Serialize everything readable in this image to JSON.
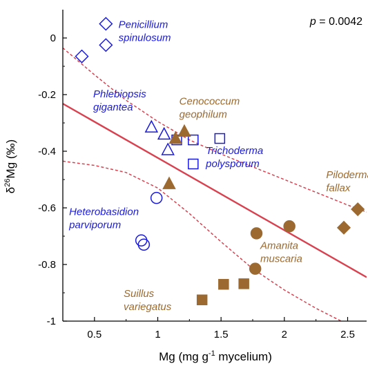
{
  "chart_data": {
    "type": "scatter",
    "xlabel": "Mg (mg g",
    "xlabel_sup": "-1",
    "xlabel_tail": " mycelium)",
    "ylabel_pre": "δ",
    "ylabel_sup": "26",
    "ylabel_tail": "Mg (‰)",
    "xlim": [
      0.25,
      2.65
    ],
    "ylim": [
      -1.0,
      0.1
    ],
    "x_ticks": [
      0.5,
      1.0,
      1.5,
      2.0,
      2.5
    ],
    "x_tick_labels": [
      "0.5",
      "1",
      "1.5",
      "2",
      "2.5"
    ],
    "y_ticks": [
      0,
      -0.2,
      -0.4,
      -0.6,
      -0.8,
      -1.0
    ],
    "y_tick_labels": [
      "0",
      "-0.2",
      "-0.4",
      "-0.6",
      "-0.8",
      "-1"
    ],
    "p_label": "p",
    "p_value": " = 0.0042",
    "colors": {
      "saprotroph": "#1a1adc",
      "mycorrhizal": "#9c6a30",
      "fit": "#d9414f"
    },
    "regression": {
      "x": [
        0.25,
        2.65
      ],
      "y": [
        -0.232,
        -0.845
      ]
    },
    "confidence_upper": {
      "x": [
        0.25,
        0.5,
        0.75,
        1.0,
        1.25,
        1.5,
        1.75,
        2.0,
        2.25,
        2.5,
        2.65
      ],
      "y": [
        -0.035,
        -0.13,
        -0.22,
        -0.295,
        -0.36,
        -0.41,
        -0.455,
        -0.5,
        -0.545,
        -0.59,
        -0.615
      ]
    },
    "confidence_lower": {
      "x": [
        0.25,
        0.5,
        0.75,
        1.0,
        1.25,
        1.5,
        1.75,
        2.0,
        2.25,
        2.45
      ],
      "y": [
        -0.435,
        -0.45,
        -0.475,
        -0.53,
        -0.62,
        -0.72,
        -0.815,
        -0.89,
        -0.955,
        -1.0
      ]
    },
    "series": [
      {
        "name": "Penicillium spinulosum",
        "marker": "diamond-open",
        "group": "saprotroph",
        "x": [
          0.4,
          0.59,
          0.59
        ],
        "y": [
          -0.065,
          0.05,
          -0.025
        ]
      },
      {
        "name": "Phlebiopsis gigantea",
        "marker": "triangle-open",
        "group": "saprotroph",
        "x": [
          0.95,
          1.05,
          1.08
        ],
        "y": [
          -0.315,
          -0.34,
          -0.395
        ]
      },
      {
        "name": "Trichoderma polysporum",
        "marker": "square-open",
        "group": "saprotroph",
        "x": [
          1.15,
          1.28,
          1.49,
          1.28
        ],
        "y": [
          -0.36,
          -0.36,
          -0.355,
          -0.445
        ]
      },
      {
        "name": "Heterobasidion parviporum",
        "marker": "circle-open",
        "group": "saprotroph",
        "x": [
          0.99,
          0.87,
          0.89
        ],
        "y": [
          -0.565,
          -0.715,
          -0.73
        ]
      },
      {
        "name": "Cenococcum geophilum",
        "marker": "triangle-filled",
        "group": "mycorrhizal",
        "x": [
          1.14,
          1.21,
          1.09
        ],
        "y": [
          -0.355,
          -0.33,
          -0.515
        ]
      },
      {
        "name": "Piloderma fallax",
        "marker": "diamond-filled",
        "group": "mycorrhizal",
        "x": [
          2.58,
          2.47
        ],
        "y": [
          -0.605,
          -0.67
        ]
      },
      {
        "name": "Amanita muscaria",
        "marker": "circle-filled",
        "group": "mycorrhizal",
        "x": [
          2.04,
          1.78,
          1.77
        ],
        "y": [
          -0.665,
          -0.69,
          -0.815
        ]
      },
      {
        "name": "Suillus variegatus",
        "marker": "square-filled",
        "group": "mycorrhizal",
        "x": [
          1.35,
          1.52,
          1.68
        ],
        "y": [
          -0.925,
          -0.87,
          -0.868
        ]
      }
    ],
    "annotations": [
      {
        "lines": [
          "Penicillium",
          "spinulosum"
        ],
        "group": "saprotroph",
        "x": 0.69,
        "y": 0.035
      },
      {
        "lines": [
          "Phlebiopsis",
          "gigantea"
        ],
        "group": "saprotroph",
        "x": 0.49,
        "y": -0.21
      },
      {
        "lines": [
          "Trichoderma",
          "polysporum"
        ],
        "group": "saprotroph",
        "x": 1.38,
        "y": -0.41
      },
      {
        "lines": [
          "Heterobasidion",
          "parviporum"
        ],
        "group": "saprotroph",
        "x": 0.3,
        "y": -0.625
      },
      {
        "lines": [
          "Cenococcum",
          "geophilum"
        ],
        "group": "mycorrhizal",
        "x": 1.17,
        "y": -0.235
      },
      {
        "lines": [
          "Piloderma",
          "fallax"
        ],
        "group": "mycorrhizal",
        "x": 2.33,
        "y": -0.495
      },
      {
        "lines": [
          "Amanita",
          "muscaria"
        ],
        "group": "mycorrhizal",
        "x": 1.81,
        "y": -0.745
      },
      {
        "lines": [
          "Suillus",
          "variegatus"
        ],
        "group": "mycorrhizal",
        "x": 0.73,
        "y": -0.915
      }
    ]
  }
}
